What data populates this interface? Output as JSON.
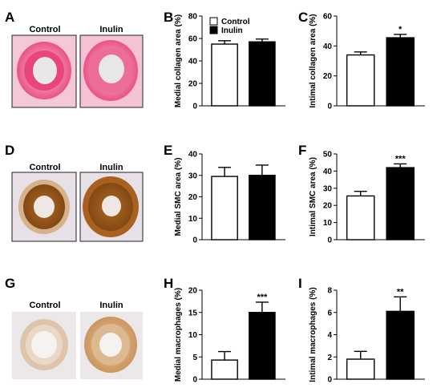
{
  "panel_letters": [
    "A",
    "B",
    "C",
    "D",
    "E",
    "F",
    "G",
    "H",
    "I"
  ],
  "micrograph_labels": {
    "A": [
      "Control",
      "Inulin"
    ],
    "D": [
      "Control",
      "Inulin"
    ],
    "G": [
      "Control",
      "Inulin"
    ]
  },
  "legend": {
    "items": [
      "Control",
      "Inulin"
    ],
    "placement": "top-left"
  },
  "colors": {
    "control_fill": "#ffffff",
    "inulin_fill": "#000000",
    "collagen_stain": "#e8467a",
    "collagen_stain_light": "#f5b9cc",
    "smc_stain": "#9a5a1c",
    "smc_stain_light": "#d9b48a",
    "macrophage_stain": "#c9925a",
    "background_tissue": "#e9e3e6"
  },
  "chart_data": [
    {
      "panel": "B",
      "type": "bar",
      "ylabel": "Medial collagen area (%)",
      "ylim": [
        0,
        80
      ],
      "yticks": [
        0,
        20,
        40,
        60,
        80
      ],
      "series": [
        {
          "name": "Control",
          "value": 55,
          "error": 3
        },
        {
          "name": "Inulin",
          "value": 57,
          "error": 2.5
        }
      ],
      "significance": ""
    },
    {
      "panel": "C",
      "type": "bar",
      "ylabel": "Intimal collagen area (%)",
      "ylim": [
        0,
        60
      ],
      "yticks": [
        0,
        20,
        40,
        60
      ],
      "series": [
        {
          "name": "Control",
          "value": 34,
          "error": 2
        },
        {
          "name": "Inulin",
          "value": 45.5,
          "error": 2.2
        }
      ],
      "significance": "*"
    },
    {
      "panel": "E",
      "type": "bar",
      "ylabel": "Medial SMC area (%)",
      "ylim": [
        0,
        40
      ],
      "yticks": [
        0,
        10,
        20,
        30,
        40
      ],
      "series": [
        {
          "name": "Control",
          "value": 29.5,
          "error": 4.2
        },
        {
          "name": "Inulin",
          "value": 30,
          "error": 4.8
        }
      ],
      "significance": ""
    },
    {
      "panel": "F",
      "type": "bar",
      "ylabel": "Intimal SMC area (%)",
      "ylim": [
        0,
        50
      ],
      "yticks": [
        0,
        10,
        20,
        30,
        40,
        50
      ],
      "series": [
        {
          "name": "Control",
          "value": 25.5,
          "error": 2.7
        },
        {
          "name": "Inulin",
          "value": 42,
          "error": 2.2
        }
      ],
      "significance": "***"
    },
    {
      "panel": "H",
      "type": "bar",
      "ylabel": "Medial macrophages (%)",
      "ylim": [
        0,
        20
      ],
      "yticks": [
        0,
        5,
        10,
        15,
        20
      ],
      "series": [
        {
          "name": "Control",
          "value": 4.3,
          "error": 1.9
        },
        {
          "name": "Inulin",
          "value": 15,
          "error": 2.3
        }
      ],
      "significance": "***"
    },
    {
      "panel": "I",
      "type": "bar",
      "ylabel": "Intimal macrophages (%)",
      "ylim": [
        0,
        8
      ],
      "yticks": [
        0,
        2,
        4,
        6,
        8
      ],
      "series": [
        {
          "name": "Control",
          "value": 1.8,
          "error": 0.7
        },
        {
          "name": "Inulin",
          "value": 6.1,
          "error": 1.3
        }
      ],
      "significance": "**"
    }
  ]
}
